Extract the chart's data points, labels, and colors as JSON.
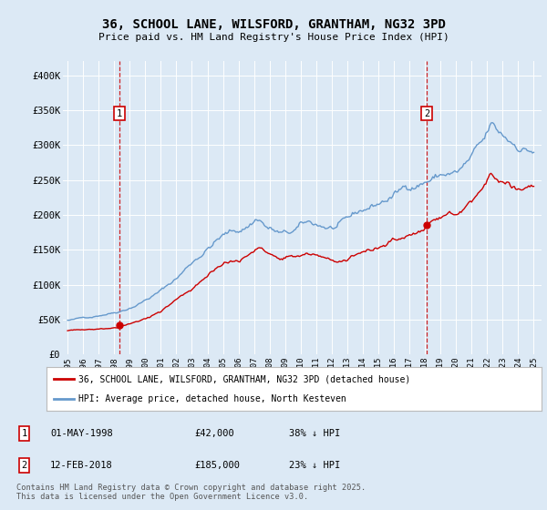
{
  "title": "36, SCHOOL LANE, WILSFORD, GRANTHAM, NG32 3PD",
  "subtitle": "Price paid vs. HM Land Registry's House Price Index (HPI)",
  "background_color": "#dce9f5",
  "plot_bg_color": "#dce9f5",
  "legend_label_red": "36, SCHOOL LANE, WILSFORD, GRANTHAM, NG32 3PD (detached house)",
  "legend_label_blue": "HPI: Average price, detached house, North Kesteven",
  "footer": "Contains HM Land Registry data © Crown copyright and database right 2025.\nThis data is licensed under the Open Government Licence v3.0.",
  "sale1_date": "01-MAY-1998",
  "sale1_price": "£42,000",
  "sale1_hpi": "38% ↓ HPI",
  "sale1_x": 1998.33,
  "sale1_y": 42000,
  "sale2_date": "12-FEB-2018",
  "sale2_price": "£185,000",
  "sale2_hpi": "23% ↓ HPI",
  "sale2_x": 2018.12,
  "sale2_y": 185000,
  "ylim": [
    0,
    420000
  ],
  "xlim_left": 1994.7,
  "xlim_right": 2025.5,
  "yticks": [
    0,
    50000,
    100000,
    150000,
    200000,
    250000,
    300000,
    350000,
    400000
  ],
  "ytick_labels": [
    "£0",
    "£50K",
    "£100K",
    "£150K",
    "£200K",
    "£250K",
    "£300K",
    "£350K",
    "£400K"
  ],
  "red_color": "#cc0000",
  "blue_color": "#6699cc",
  "dashed_color": "#cc0000",
  "grid_color": "#ffffff"
}
